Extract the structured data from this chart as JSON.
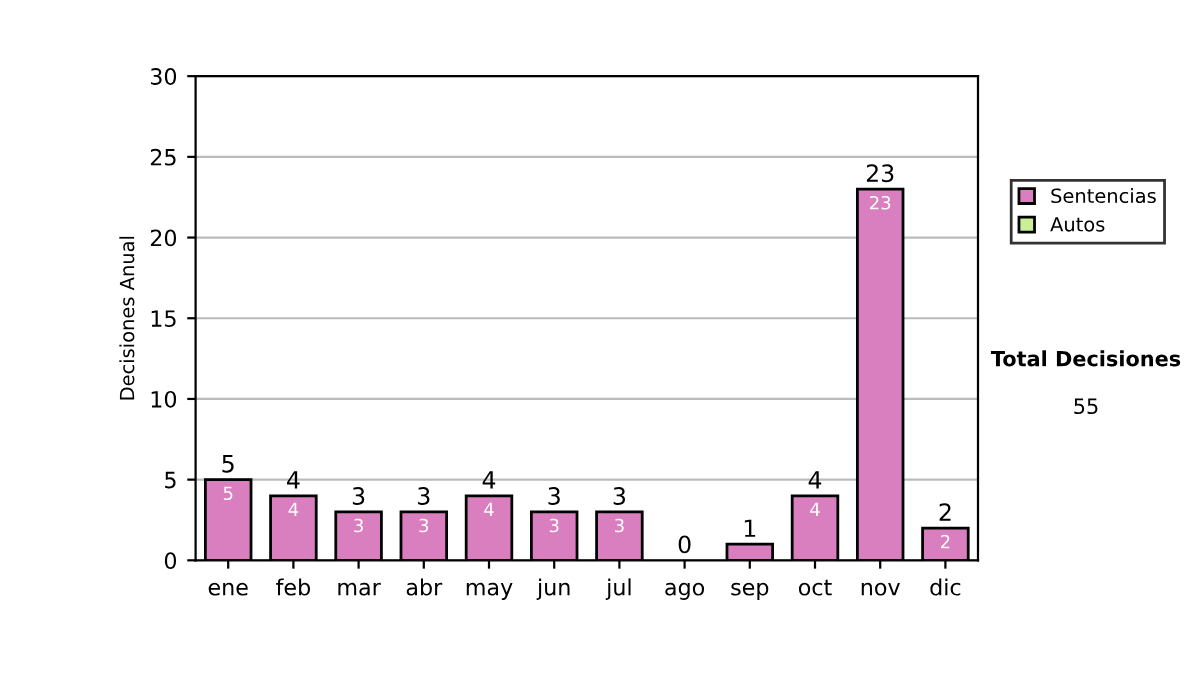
{
  "chart_data": {
    "type": "bar",
    "stacked": true,
    "ylabel": "Decisiones Anual",
    "categories": [
      "ene",
      "feb",
      "mar",
      "abr",
      "may",
      "jun",
      "jul",
      "ago",
      "sep",
      "oct",
      "nov",
      "dic"
    ],
    "series": [
      {
        "name": "Sentencias",
        "color": "#d97fbf",
        "values": [
          5,
          4,
          3,
          3,
          4,
          3,
          3,
          0,
          1,
          4,
          23,
          2
        ],
        "value_labels": [
          "5",
          "4",
          "3",
          "3",
          "4",
          "3",
          "3",
          null,
          null,
          "4",
          "23",
          "2"
        ]
      },
      {
        "name": "Autos",
        "color": "#ccee99",
        "values": [
          0,
          0,
          0,
          0,
          0,
          0,
          0,
          0,
          0,
          0,
          0,
          0
        ]
      }
    ],
    "totals": [
      "5",
      "4",
      "3",
      "3",
      "4",
      "3",
      "3",
      "0",
      "1",
      "4",
      "23",
      "2"
    ],
    "ylim": [
      0,
      30
    ],
    "yticks": [
      0,
      5,
      10,
      15,
      20,
      25,
      30
    ],
    "grid": "y",
    "legend": "right",
    "annotations": [
      "Total Decisiones",
      "55"
    ]
  }
}
